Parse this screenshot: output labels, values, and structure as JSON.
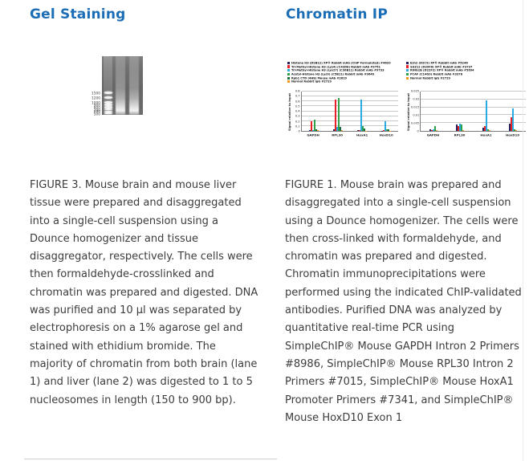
{
  "page": {
    "accent_color": "#1b6db5",
    "caption_color": "#3c3c3c"
  },
  "gel_section": {
    "title": "Gel Staining",
    "gel": {
      "ladder_labels": [
        "1500",
        "1200",
        "1000",
        "900",
        "800",
        "700",
        "600",
        "500"
      ]
    },
    "caption": "FIGURE 3. Mouse brain and mouse liver tissue were prepared and disaggregated into a single-cell suspension using a Dounce homogenizer and tissue disaggregator, respectively. The cells were then formaldehyde-crosslinked and chromatin was prepared and digested. DNA was purified and 10 µl was separated by electrophoresis on a 1% agarose gel and stained with ethidium bromide. The majority of chromatin from both brain (lane 1) and liver (lane 2) was digested to 1 to 5 nucleosomes in length (150 to 900 bp)."
  },
  "chip_section": {
    "title": "Chromatin IP",
    "caption": "FIGURE 1. Mouse brain was prepared and disaggregated into a single-cell suspension using a Dounce homogenizer. The cells were then cross-linked with formaldehyde, and chromatin was prepared and digested. Chromatin immunoprecipitations were performed using the indicated ChIP-validated antibodies. Purified DNA was analyzed by quantitative real-time PCR using SimpleChIP® Mouse GAPDH Intron 2 Primers #8986, SimpleChIP® Mouse RPL30 Intron 2 Primers #7015, SimpleChIP® Mouse HoxA1 Promoter Primers #7341, and SimpleChIP® Mouse HoxD10 Exon 1"
  },
  "chart_data": [
    {
      "type": "bar",
      "title": "",
      "xlabel": "",
      "ylabel": "Signal relative to Input",
      "ylim": [
        0,
        0.8
      ],
      "yticks": [
        "0",
        "0.1",
        "0.2",
        "0.3",
        "0.4",
        "0.5",
        "0.6",
        "0.7",
        "0.8"
      ],
      "grid": true,
      "legend_position": "top",
      "categories": [
        "GAPDH",
        "RPL30",
        "HoxA1",
        "HoxD10"
      ],
      "series": [
        {
          "name": "Histone H3 (D2B12) XP® Rabbit mAb (ChIP Formulated) #4620",
          "color": "#262262",
          "values": [
            0.02,
            0.03,
            0.01,
            0.008
          ]
        },
        {
          "name": "Tri-Methyl-Histone H3 (Lys4) (C42D8) Rabbit mAb #9751",
          "color": "#e92025",
          "values": [
            0.19,
            0.63,
            0.02,
            0.012
          ]
        },
        {
          "name": "Tri-Methyl-Histone H3 (Lys27) (C36B11) Rabbit mAb #9733",
          "color": "#29abe2",
          "values": [
            0.015,
            0.075,
            0.63,
            0.2
          ]
        },
        {
          "name": "Acetyl-Histone H3 (Lys9) (C5B11) Rabbit mAb #9649",
          "color": "#2fa148",
          "values": [
            0.225,
            0.665,
            0.1,
            0.04
          ]
        },
        {
          "name": "Rpb1 CTD (4H8) Mouse mAb #2629",
          "color": "#1d6f3c",
          "values": [
            0.04,
            0.09,
            0.055,
            0.028
          ]
        },
        {
          "name": "Normal Rabbit IgG #2729",
          "color": "#f7941e",
          "values": [
            0.01,
            0.012,
            0.008,
            0.006
          ]
        }
      ]
    },
    {
      "type": "bar",
      "title": "",
      "xlabel": "",
      "ylabel": "Signal relative to Input",
      "ylim": [
        0,
        0.025
      ],
      "yticks": [
        "0",
        "0.005",
        "0.01",
        "0.015",
        "0.02",
        "0.025"
      ],
      "grid": true,
      "legend_position": "top",
      "categories": [
        "GAPDH",
        "RPL30",
        "HoxA1",
        "HoxD10"
      ],
      "series": [
        {
          "name": "Ezh2 (D2C9) XP® Rabbit mAb #5246",
          "color": "#262262",
          "values": [
            0.0008,
            0.004,
            0.002,
            0.0045
          ]
        },
        {
          "name": "SUZ12 (D39F6) XP® Rabbit mAb #3737",
          "color": "#e92025",
          "values": [
            0.0005,
            0.003,
            0.003,
            0.0085
          ]
        },
        {
          "name": "RING1B (D22F2) XP® Rabbit mAb #5694",
          "color": "#29abe2",
          "values": [
            0.0012,
            0.0045,
            0.0195,
            0.0145
          ]
        },
        {
          "name": "PCAF (C14G9) Rabbit mAb #3378",
          "color": "#2fa148",
          "values": [
            0.003,
            0.004,
            0.0008,
            0.001
          ]
        },
        {
          "name": "Normal Rabbit IgG #2729",
          "color": "#f7941e",
          "values": [
            0.0003,
            0.0003,
            0.0003,
            0.0005
          ]
        }
      ]
    }
  ]
}
